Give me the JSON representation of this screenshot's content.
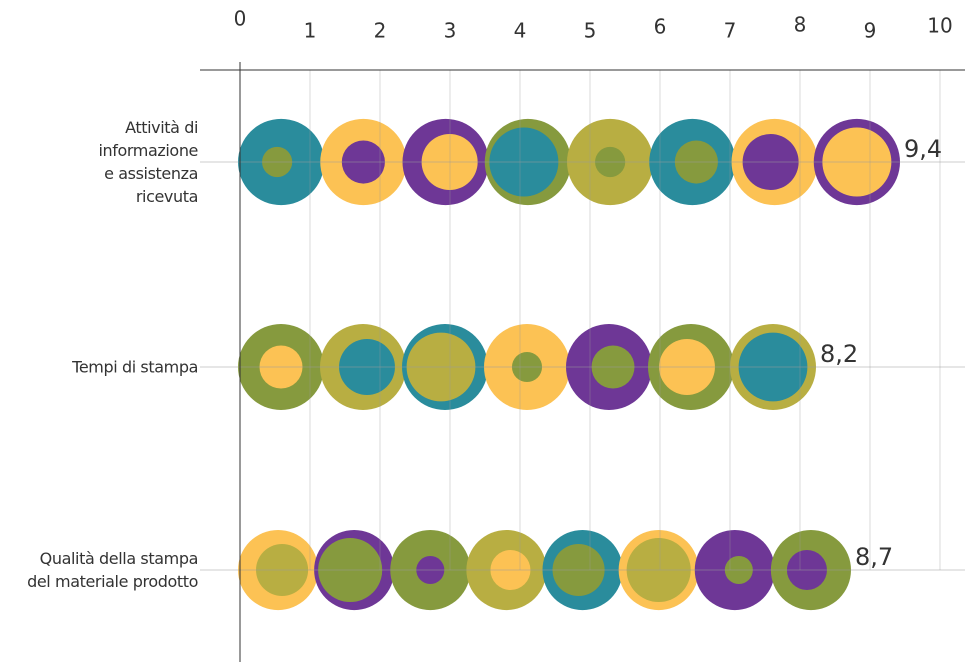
{
  "chart_data": {
    "type": "bar",
    "orientation": "horizontal",
    "categories": [
      "Attività di informazione e assistenza ricevuta",
      "Tempi di stampa",
      "Qualità della stampa del materiale prodotto"
    ],
    "values": [
      9.4,
      8.2,
      8.7
    ],
    "value_labels": [
      "9,4",
      "8,2",
      "8,7"
    ],
    "colors": [
      "#2a8c9c",
      "#869a3e",
      "#fcc254",
      "#b8ae42",
      "#6e3796"
    ],
    "xlim": [
      0,
      10
    ],
    "xticks": [
      0,
      1,
      2,
      3,
      4,
      5,
      6,
      7,
      8,
      9,
      10
    ],
    "grid": true
  }
}
